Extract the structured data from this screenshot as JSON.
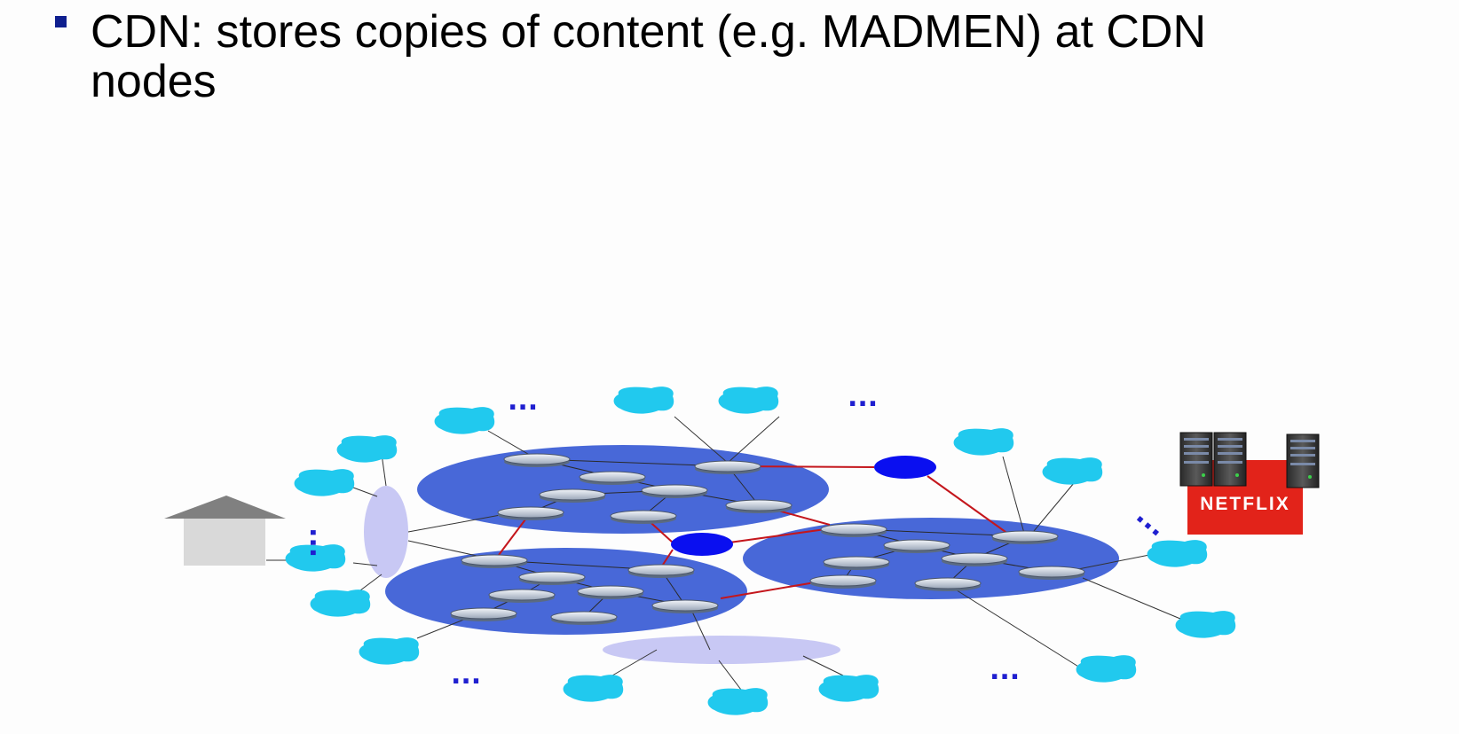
{
  "slide": {
    "bullet": "CDN: stores copies of content (e.g. MADMEN) at CDN\nnodes"
  },
  "diagram": {
    "content_provider_label": "NETFLIX",
    "ellipsis": "..."
  },
  "colors": {
    "bullet": "#0f1f8f",
    "isp_cloud": "#4868d8",
    "access_cloud": "#21c9ee",
    "cdn_node": "#0a0ff0",
    "edge_link": "#c4161c",
    "netflix_box": "#e2231a",
    "home": "#d9d9d9",
    "home_roof": "#808080",
    "access_network": "#c8c8f4"
  }
}
